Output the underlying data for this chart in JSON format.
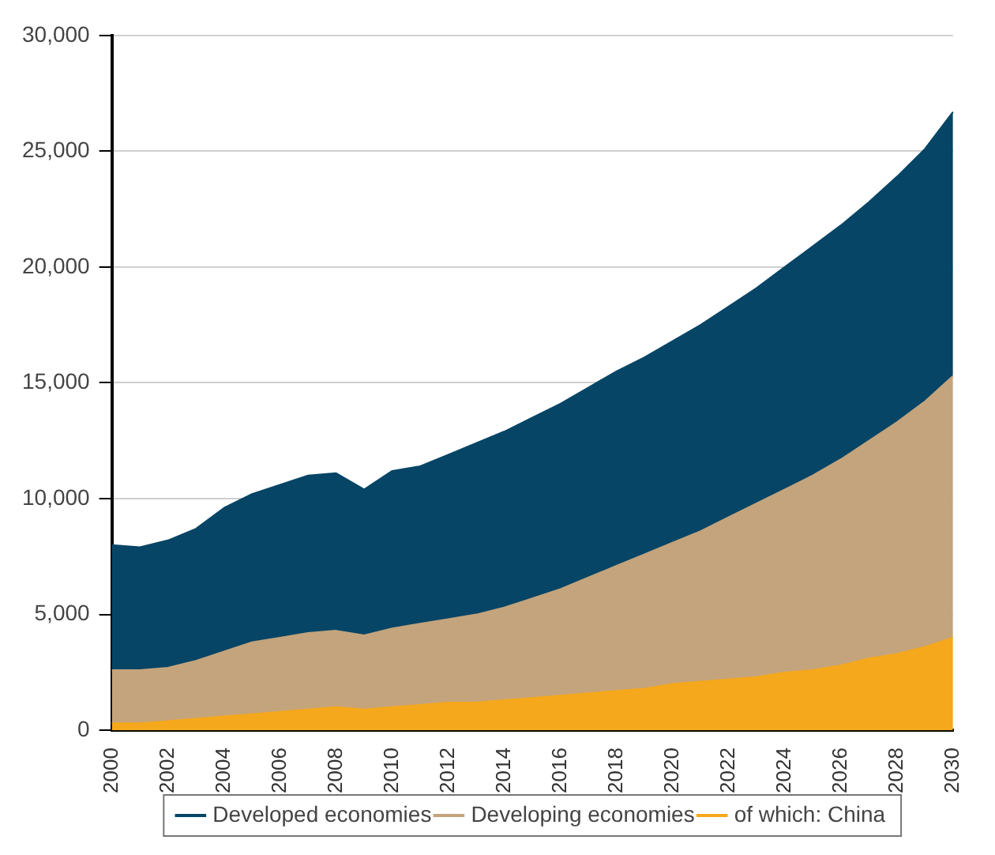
{
  "chart_data": {
    "type": "area",
    "stacked": true,
    "categories": [
      "2000",
      null,
      "2002",
      null,
      "2004",
      null,
      "2006",
      null,
      "2008",
      null,
      "2010",
      null,
      "2012",
      null,
      "2014",
      null,
      "2016",
      null,
      "2018",
      null,
      "2020",
      null,
      "2022",
      null,
      "2024",
      null,
      "2026",
      null,
      "2028",
      null,
      "2030"
    ],
    "series": [
      {
        "name": "of which: China",
        "color": "#f5a81c",
        "values": [
          300,
          300,
          400,
          500,
          600,
          700,
          800,
          900,
          1000,
          900,
          1000,
          1100,
          1200,
          1200,
          1300,
          1400,
          1500,
          1600,
          1700,
          1800,
          2000,
          2100,
          2200,
          2300,
          2500,
          2600,
          2800,
          3100,
          3300,
          3600,
          4000
        ]
      },
      {
        "name": "Developing economies",
        "color": "#c4a47c",
        "values": [
          2300,
          2300,
          2300,
          2500,
          2800,
          3100,
          3200,
          3300,
          3300,
          3200,
          3400,
          3500,
          3600,
          3800,
          4000,
          4300,
          4600,
          5000,
          5400,
          5800,
          6100,
          6500,
          7000,
          7500,
          7900,
          8400,
          8900,
          9400,
          10000,
          10600,
          11300
        ]
      },
      {
        "name": "Developed economies",
        "color": "#064566",
        "values": [
          5400,
          5300,
          5500,
          5700,
          6200,
          6400,
          6600,
          6800,
          6800,
          6300,
          6800,
          6800,
          7100,
          7400,
          7600,
          7800,
          8000,
          8200,
          8400,
          8500,
          8700,
          8900,
          9100,
          9300,
          9600,
          9900,
          10100,
          10300,
          10600,
          10900,
          11400
        ]
      }
    ],
    "ylim": [
      0,
      30000
    ],
    "yticks": [
      {
        "value": 0,
        "label": "0"
      },
      {
        "value": 5000,
        "label": "5,000"
      },
      {
        "value": 10000,
        "label": "10,000"
      },
      {
        "value": 15000,
        "label": "15,000"
      },
      {
        "value": 20000,
        "label": "20,000"
      },
      {
        "value": 25000,
        "label": "25,000"
      },
      {
        "value": 30000,
        "label": "30,000"
      }
    ],
    "grid": "y",
    "legend": "bottom",
    "marker": "none"
  }
}
